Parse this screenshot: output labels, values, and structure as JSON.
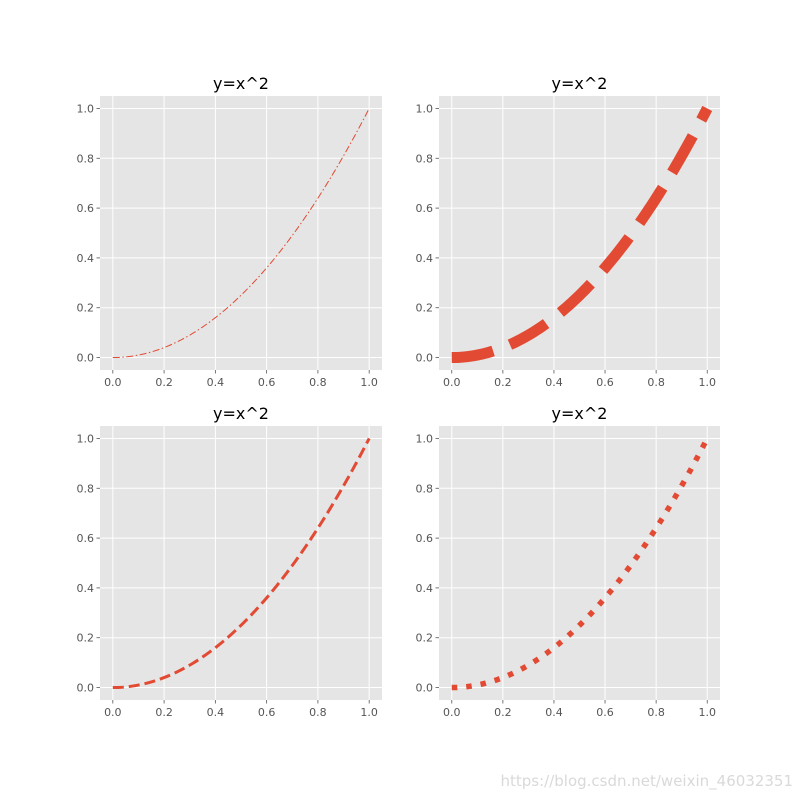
{
  "watermark": "https://blog.csdn.net/weixin_46032351",
  "colors": {
    "figure_bg": "#ffffff",
    "axes_bg": "#e5e5e5",
    "grid": "#ffffff",
    "line": "#e24a33",
    "tick_text": "#555555",
    "title_text": "#000000"
  },
  "chart_data": [
    {
      "type": "line",
      "title": "y=x^2",
      "xlabel": "",
      "ylabel": "",
      "xlim": [
        -0.05,
        1.05
      ],
      "ylim": [
        -0.05,
        1.05
      ],
      "xticks": [
        "0.0",
        "0.2",
        "0.4",
        "0.6",
        "0.8",
        "1.0"
      ],
      "yticks": [
        "0.0",
        "0.2",
        "0.4",
        "0.6",
        "0.8",
        "1.0"
      ],
      "grid": true,
      "series": [
        {
          "function": "x^2",
          "x_range": [
            0,
            1
          ],
          "linestyle": "dashdot",
          "linewidth": "thin",
          "color": "#e24a33"
        }
      ]
    },
    {
      "type": "line",
      "title": "y=x^2",
      "xlabel": "",
      "ylabel": "",
      "xlim": [
        -0.05,
        1.05
      ],
      "ylim": [
        -0.05,
        1.05
      ],
      "xticks": [
        "0.0",
        "0.2",
        "0.4",
        "0.6",
        "0.8",
        "1.0"
      ],
      "yticks": [
        "0.0",
        "0.2",
        "0.4",
        "0.6",
        "0.8",
        "1.0"
      ],
      "grid": true,
      "series": [
        {
          "function": "x^2",
          "x_range": [
            0,
            1
          ],
          "linestyle": "dashed",
          "linewidth": "very thick",
          "color": "#e24a33"
        }
      ]
    },
    {
      "type": "line",
      "title": "y=x^2",
      "xlabel": "",
      "ylabel": "",
      "xlim": [
        -0.05,
        1.05
      ],
      "ylim": [
        -0.05,
        1.05
      ],
      "xticks": [
        "0.0",
        "0.2",
        "0.4",
        "0.6",
        "0.8",
        "1.0"
      ],
      "yticks": [
        "0.0",
        "0.2",
        "0.4",
        "0.6",
        "0.8",
        "1.0"
      ],
      "grid": true,
      "series": [
        {
          "function": "x^2",
          "x_range": [
            0,
            1
          ],
          "linestyle": "dashed",
          "linewidth": "medium",
          "color": "#e24a33"
        }
      ]
    },
    {
      "type": "line",
      "title": "y=x^2",
      "xlabel": "",
      "ylabel": "",
      "xlim": [
        -0.05,
        1.05
      ],
      "ylim": [
        -0.05,
        1.05
      ],
      "xticks": [
        "0.0",
        "0.2",
        "0.4",
        "0.6",
        "0.8",
        "1.0"
      ],
      "yticks": [
        "0.0",
        "0.2",
        "0.4",
        "0.6",
        "0.8",
        "1.0"
      ],
      "grid": true,
      "series": [
        {
          "function": "x^2",
          "x_range": [
            0,
            1
          ],
          "linestyle": "dotted",
          "linewidth": "thick",
          "color": "#e24a33"
        }
      ]
    }
  ]
}
